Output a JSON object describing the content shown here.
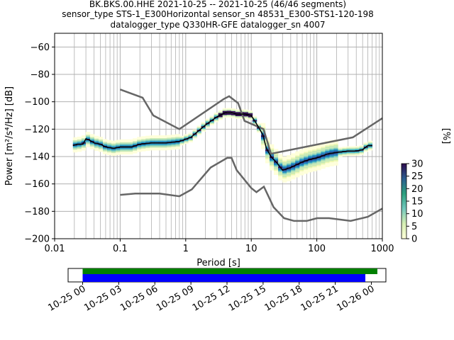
{
  "title_lines": [
    "BK.BKS.00.HHE   2021-10-25 -- 2021-10-25  (46/46 segments)",
    "sensor_type STS-1_E300Horizontal sensor_sn 48531_E300-STS1-120-198",
    "datalogger_type Q330HR-GFE datalogger_sn 4007"
  ],
  "chart_data": [
    {
      "type": "heatmap",
      "xlabel": "Period [s]",
      "ylabel": "Power [m²/s⁴/Hz] [dB]",
      "xscale": "log",
      "xlim": [
        0.01,
        1000
      ],
      "ylim": [
        -200,
        -50
      ],
      "x_ticks": [
        0.01,
        0.1,
        1,
        10,
        100,
        1000
      ],
      "x_tick_labels": [
        "0.01",
        "0.1",
        "1",
        "10",
        "100",
        "1000"
      ],
      "y_ticks": [
        -200,
        -180,
        -160,
        -140,
        -120,
        -100,
        -80,
        -60
      ],
      "y_tick_labels": [
        "−200",
        "−180",
        "−160",
        "−140",
        "−120",
        "−100",
        "−80",
        "−60"
      ],
      "grid": true,
      "noise_model_high": {
        "x": [
          0.1,
          0.22,
          0.32,
          0.8,
          3.8,
          4.6,
          6.3,
          7.9,
          15.4,
          20,
          354.8,
          1000
        ],
        "y": [
          -91,
          -97,
          -110,
          -120,
          -98,
          -96,
          -101,
          -114,
          -120,
          -138,
          -126,
          -112
        ]
      },
      "noise_model_low": {
        "x": [
          0.1,
          0.17,
          0.4,
          0.8,
          1.24,
          2.4,
          4.3,
          5,
          6,
          10,
          12,
          15.6,
          21.9,
          31.6,
          45,
          70,
          101,
          154,
          328,
          600,
          1000
        ],
        "y": [
          -168,
          -167,
          -167,
          -169,
          -164,
          -148,
          -141,
          -141,
          -150,
          -163,
          -166,
          -162,
          -177,
          -185,
          -187,
          -187,
          -185,
          -185,
          -187,
          -184,
          -178
        ]
      },
      "psd_mode": {
        "x": [
          0.019,
          0.022,
          0.027,
          0.03,
          0.034,
          0.04,
          0.05,
          0.06,
          0.08,
          0.1,
          0.15,
          0.2,
          0.3,
          0.5,
          0.8,
          1.2,
          2,
          3,
          4,
          5,
          6,
          7,
          8,
          10,
          12,
          15,
          17,
          20,
          25,
          30,
          40,
          60,
          80,
          100,
          150,
          200,
          300,
          400,
          500,
          600,
          700
        ],
        "y": [
          -132,
          -131,
          -131,
          -127,
          -128,
          -130,
          -131,
          -133,
          -134,
          -133,
          -133,
          -131,
          -130,
          -130,
          -129,
          -126,
          -117,
          -111,
          -108,
          -108,
          -109,
          -109,
          -109,
          -110,
          -116,
          -124,
          -134,
          -140,
          -145,
          -150,
          -148,
          -144,
          -142,
          -141,
          -138,
          -137,
          -136,
          -136,
          -135,
          -132,
          -132
        ]
      },
      "colorbar": {
        "label": "[%]",
        "min": 0,
        "max": 30,
        "ticks": [
          0,
          5,
          10,
          15,
          20,
          25,
          30
        ]
      }
    },
    {
      "type": "bar",
      "x_tick_labels": [
        "10-25 00",
        "10-25 03",
        "10-25 06",
        "10-25 09",
        "10-25 12",
        "10-25 15",
        "10-25 18",
        "10-25 21",
        "10-26 00"
      ],
      "series": [
        {
          "color": "#008000",
          "start_hours": 0,
          "end_hours": 24.5
        },
        {
          "color": "#0000ff",
          "start_hours": 0,
          "end_hours": 23.5
        }
      ]
    }
  ]
}
